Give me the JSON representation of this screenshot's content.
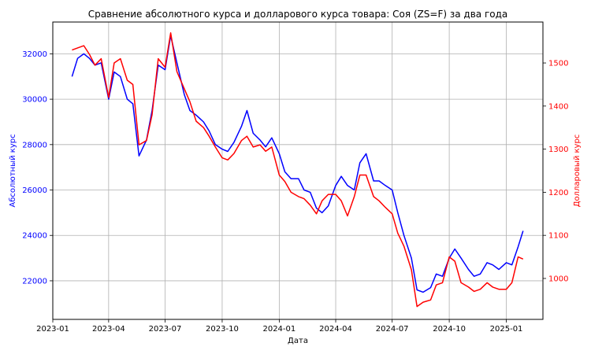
{
  "chart_data": {
    "type": "line",
    "title": "Сравнение абсолютного курса и долларового курса товара: Соя (ZS=F) за два года",
    "xlabel": "Дата",
    "ylabel_left": "Абсолютный курс",
    "ylabel_right": "Долларовый курс",
    "xlim": [
      "2023-01-01",
      "2025-03-01"
    ],
    "ylim_left": [
      20300,
      33400
    ],
    "ylim_right": [
      905,
      1595
    ],
    "x_ticks": [
      "2023-01",
      "2023-04",
      "2023-07",
      "2023-10",
      "2024-01",
      "2024-04",
      "2024-07",
      "2024-10",
      "2025-01"
    ],
    "y_ticks_left": [
      22000,
      24000,
      26000,
      28000,
      30000,
      32000
    ],
    "y_ticks_right": [
      1000,
      1100,
      1200,
      1300,
      1400,
      1500
    ],
    "grid": true,
    "colors": {
      "left": "#0000ff",
      "right": "#ff0000"
    },
    "series": [
      {
        "axis": "left",
        "color": "#0000ff",
        "x": [
          "2023-02-01",
          "2023-02-10",
          "2023-02-20",
          "2023-03-01",
          "2023-03-10",
          "2023-03-20",
          "2023-04-01",
          "2023-04-10",
          "2023-04-20",
          "2023-05-01",
          "2023-05-10",
          "2023-05-20",
          "2023-06-01",
          "2023-06-10",
          "2023-06-20",
          "2023-07-01",
          "2023-07-10",
          "2023-07-20",
          "2023-08-01",
          "2023-08-10",
          "2023-08-20",
          "2023-09-01",
          "2023-09-10",
          "2023-09-20",
          "2023-10-01",
          "2023-10-10",
          "2023-10-20",
          "2023-11-01",
          "2023-11-10",
          "2023-11-20",
          "2023-12-01",
          "2023-12-10",
          "2023-12-20",
          "2024-01-01",
          "2024-01-10",
          "2024-01-20",
          "2024-02-01",
          "2024-02-10",
          "2024-02-20",
          "2024-03-01",
          "2024-03-10",
          "2024-03-20",
          "2024-04-01",
          "2024-04-10",
          "2024-04-20",
          "2024-05-01",
          "2024-05-10",
          "2024-05-20",
          "2024-06-01",
          "2024-06-10",
          "2024-06-20",
          "2024-07-01",
          "2024-07-10",
          "2024-07-20",
          "2024-08-01",
          "2024-08-10",
          "2024-08-20",
          "2024-09-01",
          "2024-09-10",
          "2024-09-20",
          "2024-10-01",
          "2024-10-10",
          "2024-10-20",
          "2024-11-01",
          "2024-11-10",
          "2024-11-20",
          "2024-12-01",
          "2024-12-10",
          "2024-12-20",
          "2025-01-01",
          "2025-01-10",
          "2025-01-20",
          "2025-01-28"
        ],
        "values": [
          31000,
          31800,
          32000,
          31800,
          31500,
          31600,
          30000,
          31200,
          31000,
          30000,
          29800,
          27500,
          28200,
          29500,
          31500,
          31300,
          32800,
          31600,
          30200,
          29500,
          29300,
          29000,
          28600,
          28000,
          27800,
          27700,
          28100,
          28800,
          29500,
          28500,
          28200,
          27900,
          28300,
          27600,
          26800,
          26500,
          26500,
          26000,
          25900,
          25200,
          25000,
          25300,
          26200,
          26600,
          26200,
          26000,
          27200,
          27600,
          26400,
          26400,
          26200,
          26000,
          25000,
          24000,
          23000,
          21600,
          21500,
          21700,
          22300,
          22200,
          23000,
          23400,
          23000,
          22500,
          22200,
          22300,
          22800,
          22700,
          22500,
          22800,
          22700,
          23500,
          24200
        ]
      },
      {
        "axis": "right",
        "color": "#ff0000",
        "x": [
          "2023-02-01",
          "2023-02-10",
          "2023-02-20",
          "2023-03-01",
          "2023-03-10",
          "2023-03-20",
          "2023-04-01",
          "2023-04-10",
          "2023-04-20",
          "2023-05-01",
          "2023-05-10",
          "2023-05-20",
          "2023-06-01",
          "2023-06-10",
          "2023-06-20",
          "2023-07-01",
          "2023-07-10",
          "2023-07-20",
          "2023-08-01",
          "2023-08-10",
          "2023-08-20",
          "2023-09-01",
          "2023-09-10",
          "2023-09-20",
          "2023-10-01",
          "2023-10-10",
          "2023-10-20",
          "2023-11-01",
          "2023-11-10",
          "2023-11-20",
          "2023-12-01",
          "2023-12-10",
          "2023-12-20",
          "2024-01-01",
          "2024-01-10",
          "2024-01-20",
          "2024-02-01",
          "2024-02-10",
          "2024-02-20",
          "2024-03-01",
          "2024-03-10",
          "2024-03-20",
          "2024-04-01",
          "2024-04-10",
          "2024-04-20",
          "2024-05-01",
          "2024-05-10",
          "2024-05-20",
          "2024-06-01",
          "2024-06-10",
          "2024-06-20",
          "2024-07-01",
          "2024-07-10",
          "2024-07-20",
          "2024-08-01",
          "2024-08-10",
          "2024-08-20",
          "2024-09-01",
          "2024-09-10",
          "2024-09-20",
          "2024-10-01",
          "2024-10-10",
          "2024-10-20",
          "2024-11-01",
          "2024-11-10",
          "2024-11-20",
          "2024-12-01",
          "2024-12-10",
          "2024-12-20",
          "2025-01-01",
          "2025-01-10",
          "2025-01-20",
          "2025-01-28"
        ],
        "values": [
          1530,
          1535,
          1540,
          1520,
          1495,
          1510,
          1420,
          1500,
          1510,
          1460,
          1450,
          1310,
          1320,
          1380,
          1510,
          1490,
          1570,
          1480,
          1440,
          1410,
          1365,
          1350,
          1330,
          1305,
          1280,
          1275,
          1290,
          1320,
          1330,
          1305,
          1310,
          1295,
          1305,
          1240,
          1225,
          1200,
          1190,
          1185,
          1170,
          1150,
          1180,
          1195,
          1195,
          1180,
          1145,
          1190,
          1240,
          1240,
          1190,
          1180,
          1165,
          1150,
          1105,
          1075,
          1020,
          935,
          945,
          950,
          985,
          990,
          1050,
          1040,
          990,
          980,
          970,
          975,
          990,
          980,
          975,
          975,
          990,
          1050,
          1045
        ]
      }
    ]
  }
}
